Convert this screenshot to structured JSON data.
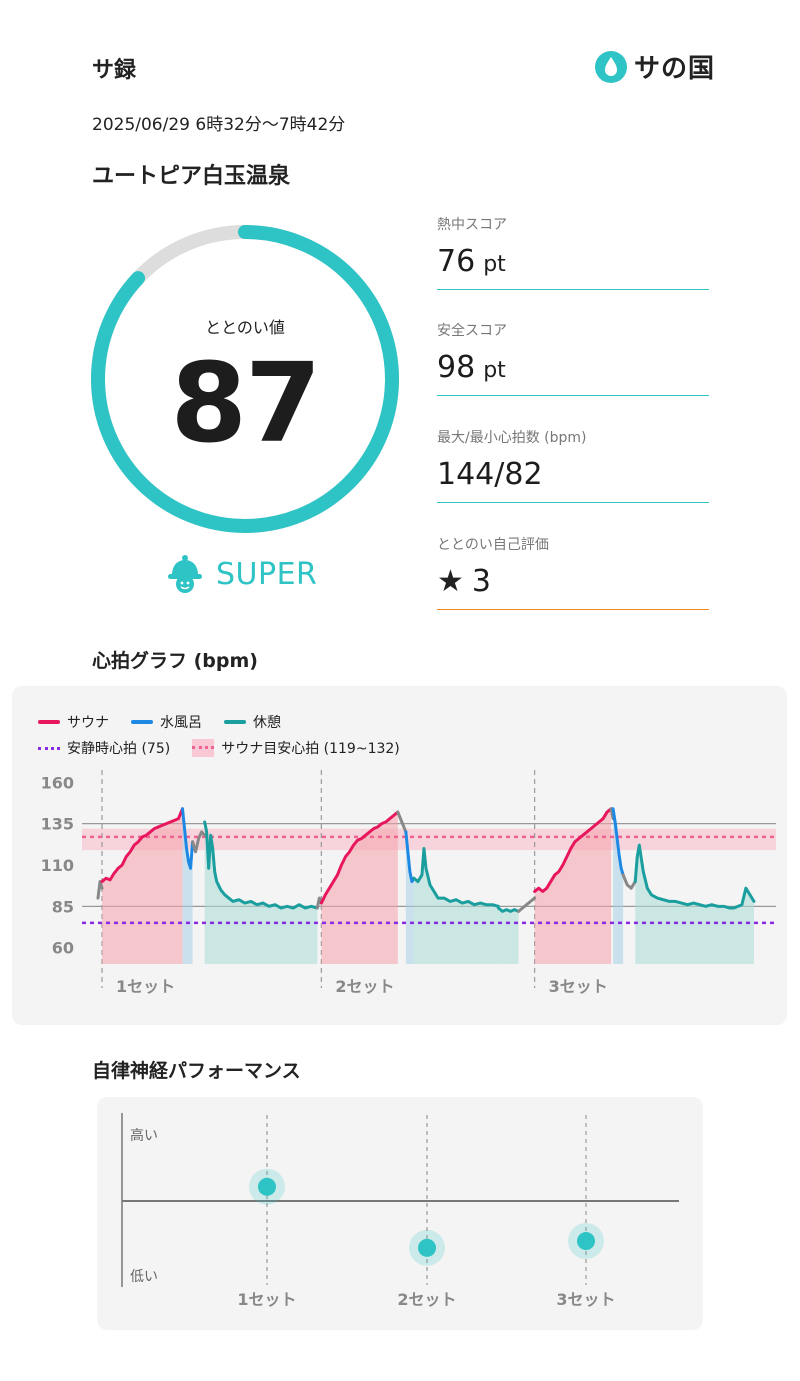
{
  "header": {
    "app_title": "サ録",
    "logo_text": "サの国",
    "session_time": "2025/06/29 6時32分〜7時42分",
    "facility": "ユートピア白玉温泉"
  },
  "score": {
    "label": "ととのい値",
    "value": "87",
    "fraction": 0.87,
    "level": "SUPER",
    "accent": "#2ec3c5",
    "track": "#dddddd"
  },
  "metrics": [
    {
      "label": "熱中スコア",
      "value": "76",
      "unit": "pt"
    },
    {
      "label": "安全スコア",
      "value": "98",
      "unit": "pt"
    },
    {
      "label": "最大/最小心拍数 (bpm)",
      "value": "144/82",
      "unit": ""
    },
    {
      "label": "ととのい自己評価",
      "value": "3",
      "unit": "",
      "icon": "star-icon"
    }
  ],
  "heart_section": {
    "title": "心拍グラフ (bpm)",
    "legend": {
      "sauna": "サウナ",
      "cold": "水風呂",
      "rest": "休憩",
      "resting_hr": "安静時心拍 (75)",
      "target_hr": "サウナ目安心拍 (119~132)"
    }
  },
  "chart_data": [
    {
      "type": "line",
      "yticks": [
        160,
        135,
        110,
        85,
        60
      ],
      "ylim": [
        55,
        165
      ],
      "resting_hr": 75,
      "target_band": [
        119,
        132
      ],
      "target_line": 127,
      "reference_lines": [
        135,
        85
      ],
      "set_labels": [
        "1セット",
        "2セット",
        "3セット"
      ],
      "colors": {
        "sauna": "#e8175d",
        "cold": "#1e88e5",
        "rest": "#1a9e9e",
        "other": "#888888",
        "resting": "#8a2be2",
        "target": "#f06292"
      },
      "segments": [
        {
          "phase": "other",
          "x": [
            0,
            2,
            4
          ],
          "y": [
            90,
            100,
            96
          ]
        },
        {
          "phase": "sauna",
          "x": [
            4,
            8,
            12,
            16,
            20,
            24,
            28,
            32,
            36,
            40,
            44,
            48,
            52,
            56,
            60,
            64,
            68,
            72,
            76,
            80,
            84
          ],
          "y": [
            100,
            102,
            101,
            105,
            108,
            110,
            115,
            118,
            122,
            124,
            127,
            128,
            130,
            132,
            133,
            134,
            135,
            136,
            137,
            138,
            144
          ]
        },
        {
          "phase": "cold",
          "x": [
            84,
            86,
            88,
            90,
            92,
            94
          ],
          "y": [
            144,
            132,
            120,
            112,
            108,
            124
          ]
        },
        {
          "phase": "other",
          "x": [
            94,
            97,
            100,
            103,
            106
          ],
          "y": [
            124,
            118,
            126,
            130,
            128
          ]
        },
        {
          "phase": "rest",
          "x": [
            106,
            108,
            110,
            112,
            114,
            116,
            118,
            122,
            126,
            130,
            134,
            140,
            146,
            152,
            158,
            164,
            170,
            176,
            182,
            188,
            194,
            200,
            206,
            212,
            218
          ],
          "y": [
            136,
            130,
            108,
            128,
            120,
            106,
            100,
            95,
            92,
            90,
            88,
            89,
            87,
            88,
            86,
            87,
            85,
            86,
            84,
            85,
            84,
            86,
            84,
            85,
            84
          ]
        },
        {
          "phase": "other",
          "x": [
            218,
            220,
            222
          ],
          "y": [
            84,
            90,
            87
          ]
        },
        {
          "phase": "sauna",
          "x": [
            222,
            226,
            230,
            234,
            238,
            242,
            246,
            250,
            254,
            258,
            262,
            266,
            270,
            274,
            278,
            282,
            286,
            290,
            294,
            298
          ],
          "y": [
            87,
            92,
            96,
            100,
            104,
            110,
            115,
            118,
            122,
            125,
            126,
            128,
            130,
            132,
            133,
            135,
            136,
            138,
            140,
            142
          ]
        },
        {
          "phase": "other",
          "x": [
            298,
            302,
            306
          ],
          "y": [
            142,
            136,
            130
          ]
        },
        {
          "phase": "cold",
          "x": [
            306,
            308,
            310,
            312,
            314
          ],
          "y": [
            130,
            118,
            106,
            100,
            102
          ]
        },
        {
          "phase": "rest",
          "x": [
            314,
            318,
            322,
            324,
            326,
            330,
            334,
            338,
            344,
            350,
            356,
            362,
            368,
            374,
            380,
            386,
            392,
            398
          ],
          "y": [
            102,
            100,
            104,
            120,
            108,
            98,
            94,
            90,
            90,
            88,
            89,
            87,
            88,
            86,
            87,
            86,
            86,
            85
          ]
        },
        {
          "phase": "rest",
          "x": [
            398,
            402,
            406,
            410,
            414,
            418
          ],
          "y": [
            84,
            82,
            83,
            82,
            83,
            82
          ]
        },
        {
          "phase": "other",
          "x": [
            418,
            422,
            426,
            430,
            434
          ],
          "y": [
            82,
            84,
            86,
            88,
            90
          ]
        },
        {
          "phase": "sauna",
          "x": [
            434,
            438,
            442,
            446,
            450,
            454,
            458,
            462,
            466,
            470,
            474,
            478,
            482,
            486,
            490,
            494,
            498,
            502,
            506,
            510
          ],
          "y": [
            94,
            96,
            94,
            96,
            100,
            104,
            106,
            110,
            115,
            120,
            124,
            126,
            128,
            130,
            132,
            134,
            136,
            138,
            142,
            144
          ]
        },
        {
          "phase": "other",
          "x": [
            510,
            512
          ],
          "y": [
            144,
            138
          ]
        },
        {
          "phase": "cold",
          "x": [
            512,
            514,
            516,
            518,
            520,
            522
          ],
          "y": [
            144,
            136,
            126,
            116,
            108,
            104
          ]
        },
        {
          "phase": "other",
          "x": [
            522,
            526,
            530,
            534
          ],
          "y": [
            104,
            98,
            96,
            100
          ]
        },
        {
          "phase": "rest",
          "x": [
            534,
            536,
            538,
            542,
            546,
            550,
            556,
            562,
            568,
            574,
            580,
            586,
            592,
            598,
            604,
            610,
            616,
            622,
            628,
            632,
            636,
            640,
            644,
            648,
            652
          ],
          "y": [
            100,
            115,
            122,
            106,
            96,
            92,
            90,
            89,
            88,
            88,
            87,
            86,
            87,
            86,
            85,
            86,
            85,
            85,
            84,
            84,
            85,
            86,
            96,
            92,
            88
          ]
        }
      ],
      "set_boundaries": [
        4,
        222,
        434
      ],
      "x_range": [
        0,
        660
      ]
    },
    {
      "type": "scatter",
      "categories": [
        "1セット",
        "2セット",
        "3セット"
      ],
      "values": [
        0.62,
        0.35,
        0.38
      ],
      "ylabels": [
        "高い",
        "低い"
      ],
      "color": "#2ec3c5"
    }
  ],
  "perf_section": {
    "title": "自律神経パフォーマンス",
    "high_label": "高い",
    "low_label": "低い"
  }
}
